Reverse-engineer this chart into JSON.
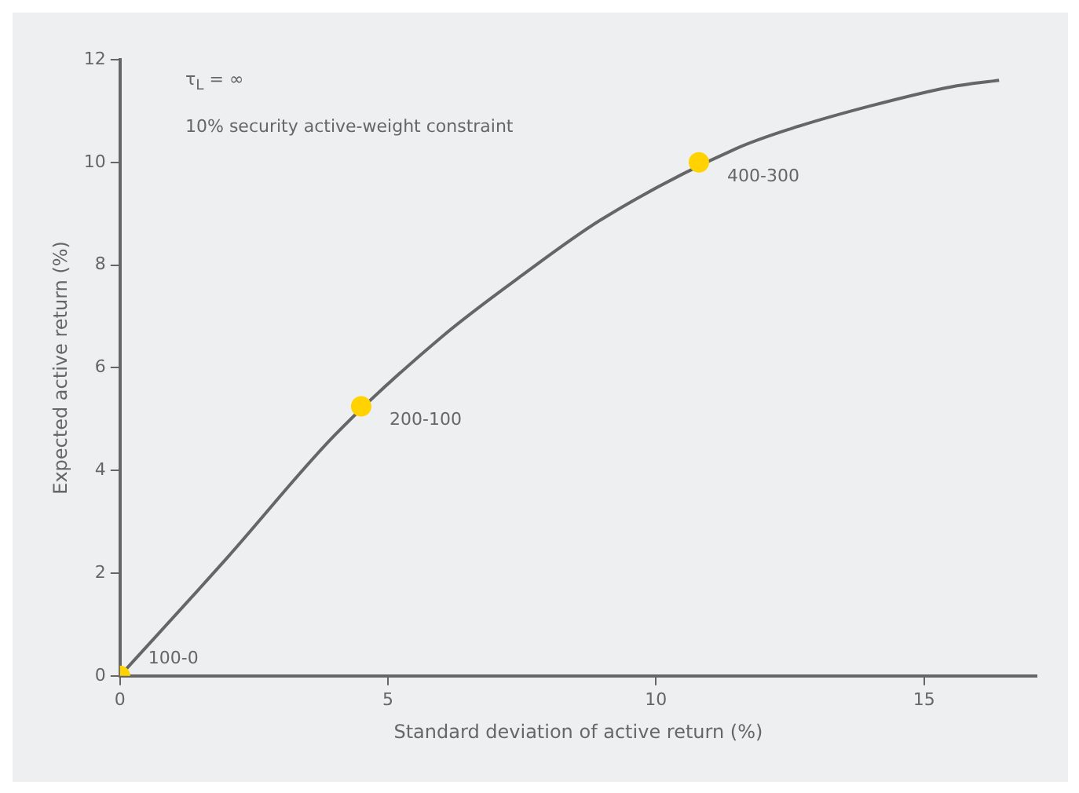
{
  "chart_data": {
    "type": "line",
    "xlabel": "Standard deviation of active return (%)",
    "ylabel": "Expected active return (%)",
    "xlim": [
      0,
      17.1
    ],
    "ylim": [
      0,
      12
    ],
    "xticks": [
      0,
      5,
      10,
      15
    ],
    "yticks": [
      0,
      2,
      4,
      6,
      8,
      10,
      12
    ],
    "grid": false,
    "legend": false,
    "series": [
      {
        "type": "line",
        "color": "#666666",
        "marker": "none",
        "line_style": "solid",
        "x": [
          0,
          2,
          4,
          6,
          7.5,
          9,
          11.5,
          12.5,
          14,
          15.5,
          16.4
        ],
        "values": [
          0,
          2.3,
          4.68,
          6.6,
          7.8,
          8.9,
          10.27,
          10.65,
          11.1,
          11.47,
          11.6
        ]
      },
      {
        "type": "scatter",
        "color": "#ffd200",
        "marker": "circle",
        "x": [
          0,
          4.5,
          10.8
        ],
        "values": [
          0,
          5.25,
          10
        ]
      }
    ],
    "annotations": [
      "τ$_{L}$ = ∞",
      "10% security active-weight constraint",
      {
        "text": "100-0",
        "x": 0,
        "y": 0
      },
      {
        "text": "200-100",
        "x": 4.5,
        "y": 5.25
      },
      {
        "text": "400-300",
        "x": 10.8,
        "y": 10
      }
    ]
  }
}
